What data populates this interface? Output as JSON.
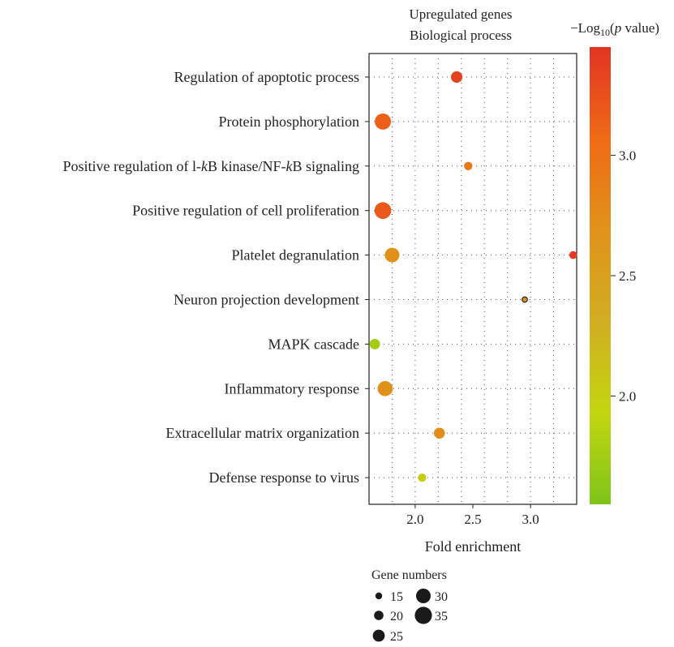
{
  "chart_data": {
    "type": "scatter",
    "title_lines": [
      "Upregulated genes",
      "Biological process"
    ],
    "xlabel": "Fold enrichment",
    "xlim": [
      1.6,
      3.4
    ],
    "xticks": [
      2.0,
      2.5,
      3.0
    ],
    "categories": [
      "Regulation of apoptotic process",
      "Protein phosphorylation",
      "Positive regulation of l-kB kinase/NF-kB signaling",
      "Positive regulation of cell proliferation",
      "Platelet degranulation",
      "Neuron projection development",
      "MAPK cascade",
      "Inflammatory response",
      "Extracellular matrix organization",
      "Defense response to virus"
    ],
    "points": [
      {
        "category": "Regulation of apoptotic process",
        "x": 2.36,
        "gene_count": 24,
        "neg_log10_p": 3.35
      },
      {
        "category": "Protein phosphorylation",
        "x": 1.72,
        "gene_count": 33,
        "neg_log10_p": 3.15
      },
      {
        "category": "Positive regulation of l-kB kinase/NF-kB signaling",
        "x": 2.46,
        "gene_count": 18,
        "neg_log10_p": 2.95
      },
      {
        "category": "Positive regulation of cell proliferation",
        "x": 1.72,
        "gene_count": 34,
        "neg_log10_p": 3.2
      },
      {
        "category": "Platelet degranulation",
        "x": 1.8,
        "gene_count": 30,
        "neg_log10_p": 2.7
      },
      {
        "category": "Platelet degranulation",
        "x": 3.37,
        "gene_count": 17,
        "neg_log10_p": 3.4
      },
      {
        "category": "Neuron projection development",
        "x": 2.95,
        "gene_count": 12,
        "neg_log10_p": 2.65
      },
      {
        "category": "MAPK cascade",
        "x": 1.65,
        "gene_count": 22,
        "neg_log10_p": 1.75
      },
      {
        "category": "Inflammatory response",
        "x": 1.74,
        "gene_count": 31,
        "neg_log10_p": 2.7
      },
      {
        "category": "Extracellular matrix organization",
        "x": 2.21,
        "gene_count": 23,
        "neg_log10_p": 2.75
      },
      {
        "category": "Defense response to virus",
        "x": 2.06,
        "gene_count": 18,
        "neg_log10_p": 2.0
      }
    ],
    "colorbar": {
      "title_prefix": "−Log",
      "title_sub": "10",
      "title_open": "(",
      "title_var": "p",
      "title_rest": " value)",
      "range": [
        1.55,
        3.45
      ],
      "ticks": [
        2.0,
        2.5,
        3.0
      ],
      "tick_labels": [
        "2.0",
        "2.5",
        "3.0"
      ],
      "colors": [
        "#7ec41a",
        "#c3d60f",
        "#d1ad22",
        "#e0921a",
        "#ef6a16",
        "#e23424"
      ]
    },
    "size_legend": {
      "title": "Gene numbers",
      "entries": [
        15,
        20,
        25,
        30,
        35
      ]
    },
    "grid": true
  }
}
